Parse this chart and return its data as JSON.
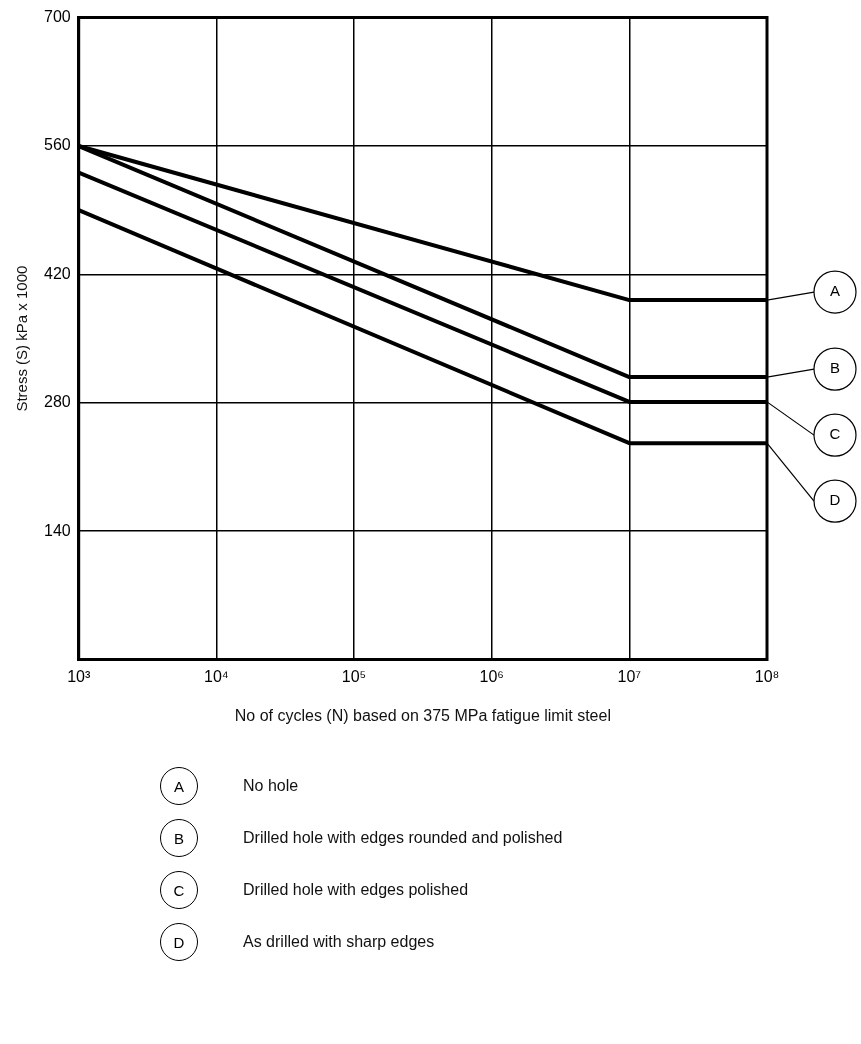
{
  "chart_data": {
    "type": "line",
    "xlabel": "No of cycles (N) based on 375 MPa fatigue limit steel",
    "ylabel": "Stress (S) kPa x 1000",
    "log": "x",
    "xlim": [
      1000,
      100000000
    ],
    "xticks": [
      {
        "value": 1000,
        "label": "10³"
      },
      {
        "value": 10000,
        "label": "10⁴"
      },
      {
        "value": 100000,
        "label": "10⁵"
      },
      {
        "value": 1000000,
        "label": "10⁶"
      },
      {
        "value": 10000000,
        "label": "10⁷"
      },
      {
        "value": 100000000,
        "label": "10⁸"
      }
    ],
    "ylim": [
      0,
      700
    ],
    "yticks": [
      140,
      280,
      420,
      560,
      700
    ],
    "grid": true,
    "legend": "right",
    "marker": "none",
    "line_style": "solid",
    "x": [
      1000,
      10000000,
      100000000
    ],
    "series": [
      {
        "name": "A",
        "color": "#000000",
        "values": [
          560,
          392,
          392
        ]
      },
      {
        "name": "B",
        "color": "#000000",
        "values": [
          560,
          308,
          308
        ]
      },
      {
        "name": "C",
        "color": "#000000",
        "values": [
          531,
          281,
          281
        ]
      },
      {
        "name": "D",
        "color": "#000000",
        "values": [
          490,
          236,
          236
        ]
      }
    ],
    "annotations": [
      "No hole",
      "Drilled hole with edges rounded and polished",
      "Drilled hole with edges polished",
      "As drilled with sharp edges"
    ]
  }
}
